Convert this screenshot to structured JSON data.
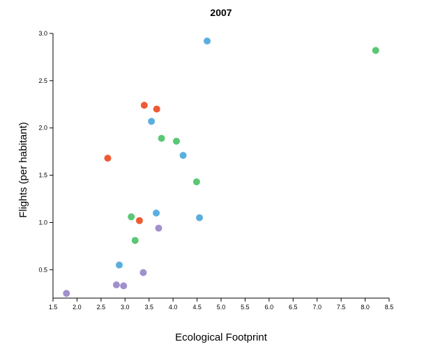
{
  "chart_data": {
    "type": "scatter",
    "title": "2007",
    "xlabel": "Ecological Footprint",
    "ylabel": "Flights (per habitant)",
    "xlim": [
      1.5,
      8.5
    ],
    "ylim": [
      0.2,
      3.0
    ],
    "x_ticks": [
      "1.5",
      "2.0",
      "2.5",
      "3.0",
      "3.5",
      "4.0",
      "4.5",
      "5.0",
      "5.5",
      "6.0",
      "6.5",
      "7.0",
      "7.5",
      "8.0",
      "8.5"
    ],
    "y_ticks": [
      "0.5",
      "1.0",
      "1.5",
      "2.0",
      "2.5",
      "3.0"
    ],
    "grid": false,
    "series": [
      {
        "color": "#5aafdf",
        "points": [
          {
            "x": 4.71,
            "y": 2.92
          },
          {
            "x": 3.55,
            "y": 2.07
          },
          {
            "x": 4.21,
            "y": 1.71
          },
          {
            "x": 3.65,
            "y": 1.1
          },
          {
            "x": 4.55,
            "y": 1.05
          },
          {
            "x": 2.88,
            "y": 0.55
          }
        ]
      },
      {
        "color": "#5bc775",
        "points": [
          {
            "x": 8.22,
            "y": 2.82
          },
          {
            "x": 3.76,
            "y": 1.89
          },
          {
            "x": 4.07,
            "y": 1.86
          },
          {
            "x": 4.49,
            "y": 1.43
          },
          {
            "x": 3.13,
            "y": 1.06
          },
          {
            "x": 3.21,
            "y": 0.81
          }
        ]
      },
      {
        "color": "#ee5a34",
        "points": [
          {
            "x": 3.4,
            "y": 2.24
          },
          {
            "x": 3.66,
            "y": 2.2
          },
          {
            "x": 2.64,
            "y": 1.68
          },
          {
            "x": 3.3,
            "y": 1.02
          }
        ]
      },
      {
        "color": "#a190cb",
        "points": [
          {
            "x": 3.7,
            "y": 0.94
          },
          {
            "x": 3.38,
            "y": 0.47
          },
          {
            "x": 2.82,
            "y": 0.34
          },
          {
            "x": 2.97,
            "y": 0.33
          },
          {
            "x": 1.78,
            "y": 0.25
          }
        ]
      }
    ]
  }
}
